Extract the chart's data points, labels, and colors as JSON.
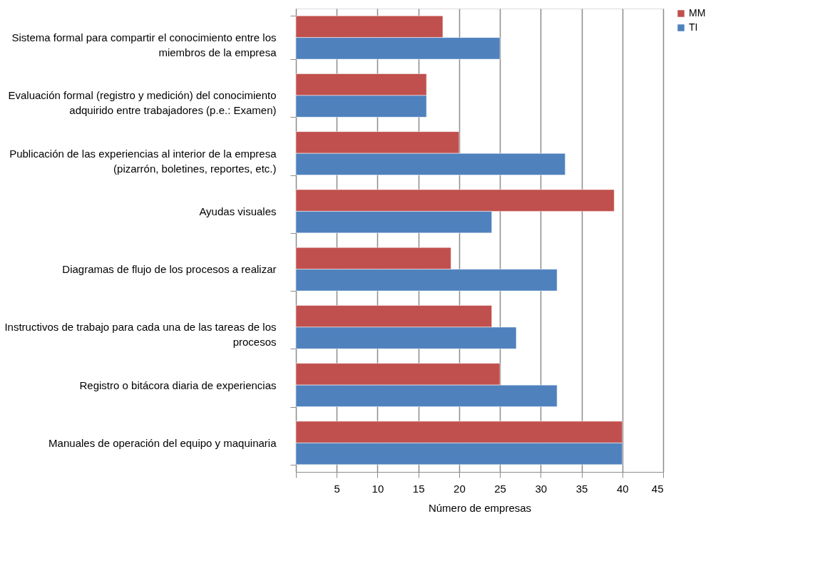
{
  "chart_data": {
    "type": "bar",
    "orientation": "horizontal",
    "xlabel": "Número de empresas",
    "categories": [
      "Sistema formal para compartir el conocimiento entre los miembros de la empresa",
      "Evaluación formal (registro y medición) del conocimiento adquirido entre trabajadores (p.e.: Examen)",
      "Publicación de las experiencias al interior de la empresa (pizarrón, boletines, reportes, etc.)",
      "Ayudas visuales",
      "Diagramas de flujo de los procesos a realizar",
      "Instructivos de trabajo para cada una de las tareas de los procesos",
      "Registro o bitácora diaria de experiencias",
      "Manuales de operación del equipo y maquinaria"
    ],
    "series": [
      {
        "name": "MM",
        "color": "#c0504d",
        "values": [
          18,
          16,
          20,
          39,
          19,
          24,
          25,
          40
        ]
      },
      {
        "name": "TI",
        "color": "#4f81bd",
        "values": [
          25,
          16,
          33,
          24,
          32,
          27,
          32,
          40
        ]
      }
    ],
    "xlim": [
      0,
      45
    ],
    "xticks": [
      {
        "value": 0,
        "label": null
      },
      5,
      10,
      15,
      20,
      25,
      30,
      35,
      40,
      45
    ],
    "grid": "x",
    "legend": "right"
  }
}
